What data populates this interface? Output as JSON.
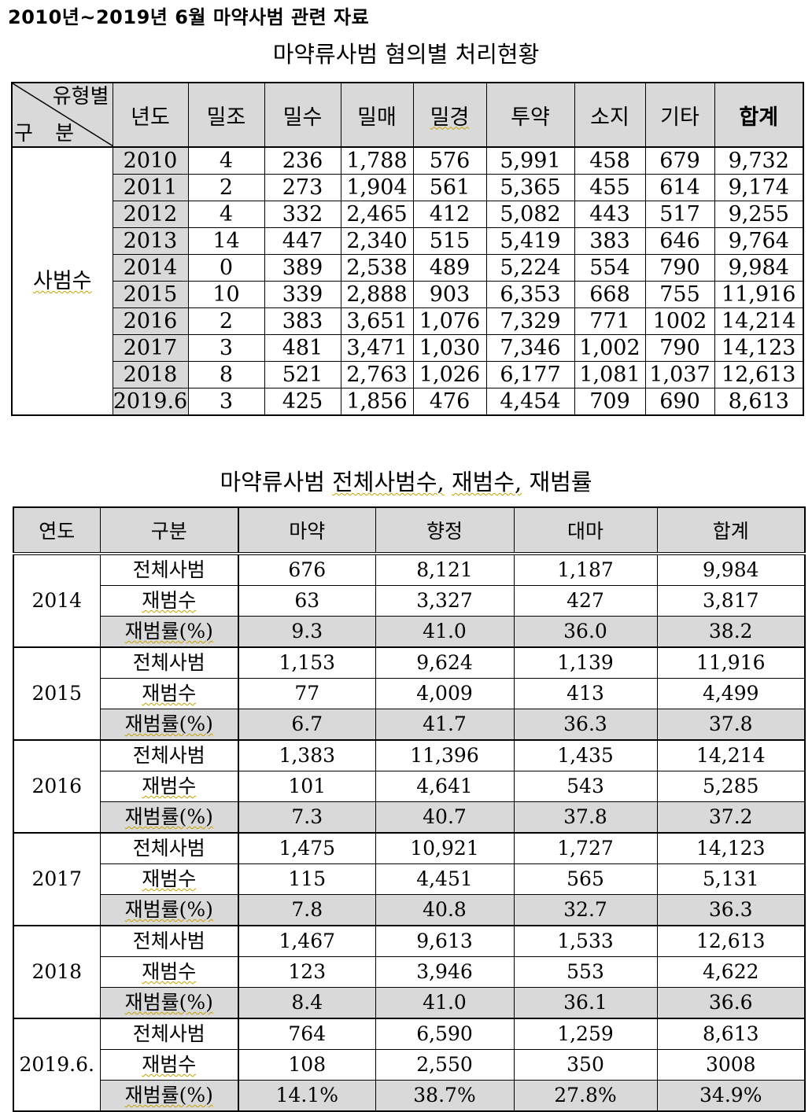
{
  "doc_title": "2010년~2019년 6월 마약사범 관련 자료",
  "table1": {
    "caption": "마약류사범 혐의별 처리현황",
    "corner_top": "유형별",
    "corner_bottom": "구 분",
    "row_group_label": "사범수",
    "headers": [
      "년도",
      "밀조",
      "밀수",
      "밀매",
      "밀경",
      "투약",
      "소지",
      "기타",
      "합계"
    ],
    "rows": [
      [
        "2010",
        "4",
        "236",
        "1,788",
        "576",
        "5,991",
        "458",
        "679",
        "9,732"
      ],
      [
        "2011",
        "2",
        "273",
        "1,904",
        "561",
        "5,365",
        "455",
        "614",
        "9,174"
      ],
      [
        "2012",
        "4",
        "332",
        "2,465",
        "412",
        "5,082",
        "443",
        "517",
        "9,255"
      ],
      [
        "2013",
        "14",
        "447",
        "2,340",
        "515",
        "5,419",
        "383",
        "646",
        "9,764"
      ],
      [
        "2014",
        "0",
        "389",
        "2,538",
        "489",
        "5,224",
        "554",
        "790",
        "9,984"
      ],
      [
        "2015",
        "10",
        "339",
        "2,888",
        "903",
        "6,353",
        "668",
        "755",
        "11,916"
      ],
      [
        "2016",
        "2",
        "383",
        "3,651",
        "1,076",
        "7,329",
        "771",
        "1002",
        "14,214"
      ],
      [
        "2017",
        "3",
        "481",
        "3,471",
        "1,030",
        "7,346",
        "1,002",
        "790",
        "14,123"
      ],
      [
        "2018",
        "8",
        "521",
        "2,763",
        "1,026",
        "6,177",
        "1,081",
        "1,037",
        "12,613"
      ],
      [
        "2019.6",
        "3",
        "425",
        "1,856",
        "476",
        "4,454",
        "709",
        "690",
        "8,613"
      ]
    ]
  },
  "table2": {
    "caption": "마약류사범 전체사범수, 재범수, 재범률",
    "headers": [
      "연도",
      "구분",
      "마약",
      "향정",
      "대마",
      "합계"
    ],
    "kinds": [
      "전체사범",
      "재범수",
      "재범률(%)"
    ],
    "groups": [
      {
        "year": "2014",
        "rows": [
          [
            "676",
            "8,121",
            "1,187",
            "9,984"
          ],
          [
            "63",
            "3,327",
            "427",
            "3,817"
          ],
          [
            "9.3",
            "41.0",
            "36.0",
            "38.2"
          ]
        ]
      },
      {
        "year": "2015",
        "rows": [
          [
            "1,153",
            "9,624",
            "1,139",
            "11,916"
          ],
          [
            "77",
            "4,009",
            "413",
            "4,499"
          ],
          [
            "6.7",
            "41.7",
            "36.3",
            "37.8"
          ]
        ]
      },
      {
        "year": "2016",
        "rows": [
          [
            "1,383",
            "11,396",
            "1,435",
            "14,214"
          ],
          [
            "101",
            "4,641",
            "543",
            "5,285"
          ],
          [
            "7.3",
            "40.7",
            "37.8",
            "37.2"
          ]
        ]
      },
      {
        "year": "2017",
        "rows": [
          [
            "1,475",
            "10,921",
            "1,727",
            "14,123"
          ],
          [
            "115",
            "4,451",
            "565",
            "5,131"
          ],
          [
            "7.8",
            "40.8",
            "32.7",
            "36.3"
          ]
        ]
      },
      {
        "year": "2018",
        "rows": [
          [
            "1,467",
            "9,613",
            "1,533",
            "12,613"
          ],
          [
            "123",
            "3,946",
            "553",
            "4,622"
          ],
          [
            "8.4",
            "41.0",
            "36.1",
            "36.6"
          ]
        ]
      },
      {
        "year": "2019.6.",
        "rows": [
          [
            "764",
            "6,590",
            "1,259",
            "8,613"
          ],
          [
            "108",
            "2,550",
            "350",
            "3008"
          ],
          [
            "14.1%",
            "38.7%",
            "27.8%",
            "34.9%"
          ]
        ]
      }
    ]
  }
}
